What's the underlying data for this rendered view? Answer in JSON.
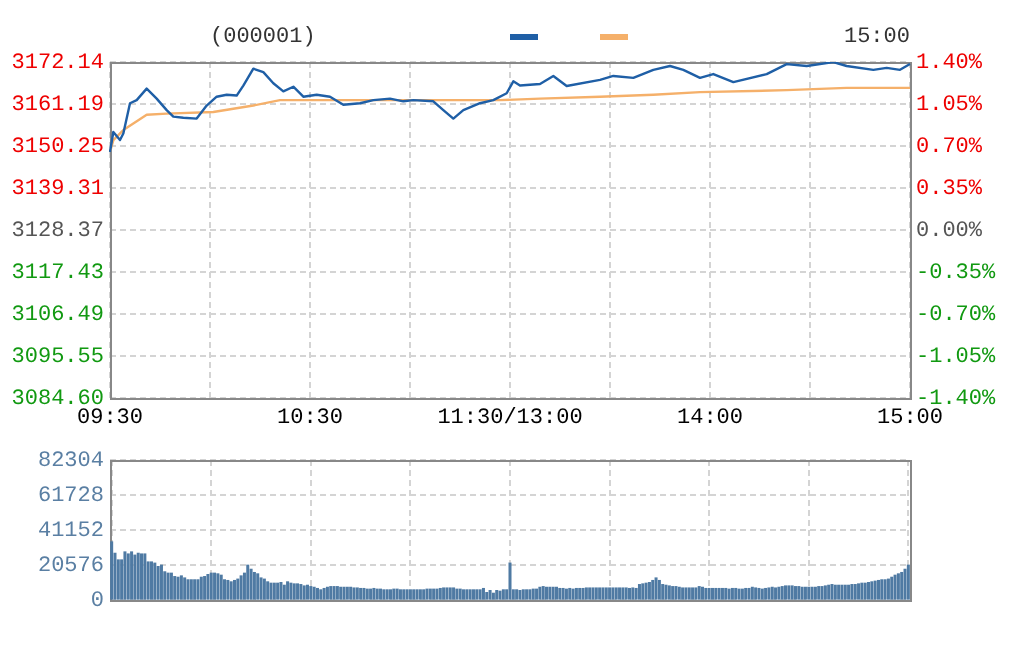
{
  "chart_data": [
    {
      "type": "line",
      "title": "(000001)",
      "annotations": [
        "15:00"
      ],
      "categories": [
        "09:30",
        null,
        null,
        null,
        null,
        null,
        null,
        null,
        null,
        null,
        null,
        null,
        null,
        null,
        null,
        null,
        null,
        null,
        null,
        null,
        null,
        null,
        null,
        null,
        null,
        null,
        null,
        null,
        null,
        null,
        null,
        null,
        null,
        null,
        null,
        null,
        null,
        null,
        null,
        null,
        null,
        null,
        null,
        null,
        null,
        null,
        null,
        null,
        null,
        null,
        null,
        null,
        null,
        null,
        null,
        null,
        null,
        null,
        null,
        null,
        "10:30",
        null,
        null,
        null,
        null,
        null,
        null,
        null,
        null,
        null,
        null,
        null,
        null,
        null,
        null,
        null,
        null,
        null,
        null,
        null,
        null,
        null,
        null,
        null,
        null,
        null,
        null,
        null,
        null,
        null,
        null,
        null,
        null,
        null,
        null,
        null,
        null,
        null,
        null,
        null,
        null,
        null,
        null,
        null,
        null,
        null,
        null,
        null,
        null,
        null,
        null,
        null,
        null,
        null,
        null,
        null,
        null,
        null,
        null,
        null,
        "11:30/13:00",
        null,
        null,
        null,
        null,
        null,
        null,
        null,
        null,
        null,
        null,
        null,
        null,
        null,
        null,
        null,
        null,
        null,
        null,
        null,
        null,
        null,
        null,
        null,
        null,
        null,
        null,
        null,
        null,
        null,
        null,
        null,
        null,
        null,
        null,
        null,
        null,
        null,
        null,
        null,
        null,
        null,
        null,
        null,
        null,
        null,
        null,
        null,
        null,
        null,
        null,
        null,
        null,
        null,
        null,
        null,
        null,
        null,
        null,
        null,
        "14:00",
        null,
        null,
        null,
        null,
        null,
        null,
        null,
        null,
        null,
        null,
        null,
        null,
        null,
        null,
        null,
        null,
        null,
        null,
        null,
        null,
        null,
        null,
        null,
        null,
        null,
        null,
        null,
        null,
        null,
        null,
        null,
        null,
        null,
        null,
        null,
        null,
        null,
        null,
        null,
        null,
        null,
        null,
        null,
        null,
        null,
        null,
        null,
        null,
        null,
        null,
        null,
        null,
        null,
        null,
        null,
        null,
        null,
        null,
        null,
        "15:00"
      ],
      "ylim": [
        3084.6,
        3172.14
      ],
      "yticks": [
        {
          "value": 3084.6,
          "label": "3084.60"
        },
        3095.55,
        3106.49,
        3117.43,
        3128.37,
        3139.31,
        3150.25,
        3161.19,
        3172.14
      ],
      "y2lim": [
        -1.4,
        1.4
      ],
      "y2ticks": [
        {
          "value": -1.4,
          "label": "-1.40%"
        },
        {
          "value": -1.05,
          "label": "-1.05%"
        },
        {
          "value": -0.7,
          "label": "-0.70%"
        },
        {
          "value": -0.35,
          "label": "-0.35%"
        },
        {
          "value": 0,
          "label": "0.00%"
        },
        {
          "value": 0.35,
          "label": "0.35%"
        },
        {
          "value": 0.7,
          "label": "0.70%"
        },
        {
          "value": 1.05,
          "label": "1.05%"
        },
        {
          "value": 1.4,
          "label": "1.40%"
        }
      ],
      "grid": true,
      "series": [
        {
          "color": "#1f5fa6",
          "values": [
            3148.7,
            3153.9,
            null,
            3151.8,
            3153.5,
            null,
            3161.4,
            null,
            3162.2,
            null,
            null,
            3165.2,
            null,
            null,
            3162.6,
            null,
            null,
            3159.6,
            null,
            3157.9,
            null,
            null,
            3157.6,
            null,
            null,
            null,
            3157.4,
            null,
            null,
            3160.8,
            null,
            null,
            3163.1,
            null,
            null,
            3163.6,
            null,
            null,
            3163.4,
            null,
            3166.0,
            null,
            null,
            3170.4,
            null,
            null,
            3169.5,
            null,
            null,
            3166.6,
            null,
            null,
            3164.5,
            null,
            null,
            3165.7,
            null,
            null,
            3163.1,
            null,
            null,
            null,
            3163.6,
            null,
            null,
            null,
            3163.1,
            null,
            null,
            null,
            3161.0,
            null,
            null,
            null,
            null,
            3161.4,
            null,
            null,
            null,
            3162.2,
            null,
            null,
            null,
            null,
            3162.6,
            null,
            null,
            null,
            3161.9,
            null,
            null,
            3162.2,
            null,
            null,
            null,
            null,
            null,
            3161.9,
            null,
            null,
            3159.6,
            null,
            null,
            3157.4,
            null,
            null,
            3159.6,
            null,
            null,
            null,
            null,
            3161.4,
            null,
            null,
            null,
            3162.2,
            null,
            null,
            null,
            3164.0,
            null,
            3167.1,
            null,
            3166.0,
            null,
            null,
            null,
            null,
            null,
            3166.4,
            null,
            null,
            null,
            3168.5,
            null,
            null,
            null,
            3165.9,
            null,
            null,
            null,
            null,
            null,
            null,
            null,
            null,
            null,
            3167.5,
            null,
            null,
            null,
            3168.5,
            null,
            null,
            null,
            null,
            null,
            3168.0,
            null,
            null,
            null,
            null,
            null,
            3170.1,
            null,
            null,
            null,
            null,
            3171.1,
            null,
            null,
            null,
            3170.1,
            null,
            null,
            null,
            null,
            3168.0,
            null,
            null,
            null,
            3169.0,
            null,
            null,
            null,
            null,
            null,
            3166.9,
            null,
            null,
            null,
            null,
            null,
            null,
            null,
            null,
            null,
            3169.0,
            null,
            null,
            null,
            null,
            null,
            3171.6,
            null,
            null,
            null,
            null,
            null,
            3171.1,
            null,
            null,
            null,
            null,
            null,
            null,
            null,
            3172.1,
            null,
            null,
            null,
            3171.1,
            null,
            null,
            null,
            null,
            null,
            null,
            null,
            3170.1,
            null,
            null,
            null,
            3170.6,
            null,
            null,
            null,
            3170.1,
            null,
            null,
            3171.6
          ]
        },
        {
          "color": "#f5b06a",
          "values": [
            3148.7,
            3151.8,
            null,
            null,
            3154.4,
            null,
            null,
            3156.1,
            null,
            null,
            null,
            3158.4,
            null,
            null,
            null,
            null,
            null,
            3158.7,
            null,
            null,
            null,
            null,
            null,
            null,
            null,
            null,
            null,
            null,
            null,
            null,
            null,
            3159.1,
            null,
            null,
            null,
            null,
            null,
            null,
            null,
            null,
            null,
            null,
            null,
            3160.8,
            null,
            null,
            null,
            null,
            null,
            null,
            null,
            3162.2,
            null,
            null,
            null,
            null,
            null,
            null,
            null,
            null,
            null,
            null,
            null,
            null,
            null,
            null,
            null,
            3162.2,
            null,
            null,
            null,
            null,
            null,
            null,
            null,
            null,
            null,
            null,
            null,
            null,
            null,
            null,
            null,
            null,
            null,
            null,
            null,
            null,
            null,
            null,
            null,
            null,
            null,
            null,
            null,
            null,
            null,
            null,
            null,
            null,
            null,
            null,
            null,
            null,
            null,
            null,
            null,
            null,
            null,
            null,
            null,
            null,
            null,
            null,
            null,
            null,
            null,
            3162.2,
            null,
            null,
            null,
            null,
            null,
            null,
            null,
            null,
            null,
            null,
            null,
            3162.6,
            null,
            null,
            null,
            null,
            null,
            null,
            null,
            null,
            null,
            null,
            null,
            null,
            null,
            null,
            null,
            null,
            null,
            3163.1,
            null,
            null,
            null,
            null,
            null,
            null,
            null,
            null,
            null,
            null,
            null,
            null,
            null,
            null,
            null,
            3163.6,
            null,
            null,
            null,
            null,
            null,
            null,
            null,
            null,
            null,
            null,
            null,
            null,
            null,
            3164.3,
            null,
            null,
            null,
            null,
            null,
            null,
            null,
            null,
            null,
            null,
            null,
            null,
            null,
            null,
            null,
            null,
            null,
            null,
            null,
            null,
            null,
            null,
            null,
            null,
            null,
            3164.8,
            null,
            null,
            null,
            null,
            null,
            null,
            null,
            null,
            null,
            null,
            null,
            null,
            null,
            null,
            null,
            null,
            null,
            3165.4,
            null,
            null,
            null,
            null,
            null,
            null,
            null,
            null,
            null,
            null,
            null,
            null,
            null,
            null,
            null,
            null,
            null,
            null,
            3165.4
          ]
        }
      ]
    },
    {
      "type": "bar",
      "color": "#4f7aa3",
      "tick_labels": "y",
      "grid": true,
      "categories": [
        null,
        null,
        null,
        null,
        null,
        null,
        null,
        null,
        null,
        null,
        null,
        null,
        null,
        null,
        null,
        null,
        null,
        null,
        null,
        null,
        null,
        null,
        null,
        null,
        null,
        null,
        null,
        null,
        null,
        null,
        null,
        null,
        null,
        null,
        null,
        null,
        null,
        null,
        null,
        null,
        null,
        null,
        null,
        null,
        null,
        null,
        null,
        null,
        null,
        null,
        null,
        null,
        null,
        null,
        null,
        null,
        null,
        null,
        null,
        null,
        null,
        null,
        null,
        null,
        null,
        null,
        null,
        null,
        null,
        null,
        null,
        null,
        null,
        null,
        null,
        null,
        null,
        null,
        null,
        null,
        null,
        null,
        null,
        null,
        null,
        null,
        null,
        null,
        null,
        null,
        null,
        null,
        null,
        null,
        null,
        null,
        null,
        null,
        null,
        null,
        null,
        null,
        null,
        null,
        null,
        null,
        null,
        null,
        null,
        null,
        null,
        null,
        null,
        null,
        null,
        null,
        null,
        null,
        null,
        null,
        null,
        null,
        null,
        null,
        null,
        null,
        null,
        null,
        null,
        null,
        null,
        null,
        null,
        null,
        null,
        null,
        null,
        null,
        null,
        null,
        null,
        null,
        null,
        null,
        null,
        null,
        null,
        null,
        null,
        null,
        null,
        null,
        null,
        null,
        null,
        null,
        null,
        null,
        null,
        null,
        null,
        null,
        null,
        null,
        null,
        null,
        null,
        null,
        null,
        null,
        null,
        null,
        null,
        null,
        null,
        null,
        null,
        null,
        null,
        null,
        null,
        null,
        null,
        null,
        null,
        null,
        null,
        null,
        null,
        null,
        null,
        null,
        null,
        null,
        null,
        null,
        null,
        null,
        null,
        null,
        null,
        null,
        null,
        null,
        null,
        null,
        null,
        null,
        null,
        null,
        null,
        null,
        null,
        null,
        null,
        null,
        null,
        null,
        null,
        null,
        null,
        null,
        null,
        null,
        null,
        null,
        null,
        null,
        null,
        null,
        null,
        null,
        null,
        null,
        null,
        null,
        null,
        null,
        null,
        null,
        null
      ],
      "ylim": [
        0,
        82304
      ],
      "yticks": [
        0,
        20576,
        41152,
        61728,
        82304
      ],
      "values": [
        34100,
        27400,
        23500,
        23500,
        28200,
        27000,
        28200,
        26300,
        27400,
        27000,
        27000,
        22300,
        22300,
        21600,
        19600,
        20400,
        16500,
        15700,
        15700,
        13700,
        13300,
        14100,
        12900,
        11800,
        11800,
        11800,
        11800,
        13300,
        13700,
        14900,
        15700,
        15700,
        15300,
        14500,
        11800,
        11400,
        10600,
        11400,
        12200,
        14100,
        15700,
        20400,
        18000,
        16100,
        15300,
        12900,
        12200,
        10600,
        9800,
        9800,
        9800,
        10200,
        8600,
        10600,
        9800,
        9400,
        9400,
        9000,
        8200,
        8600,
        7800,
        7400,
        6700,
        5900,
        6700,
        7400,
        7800,
        7800,
        7800,
        7400,
        7400,
        7400,
        7400,
        7000,
        7000,
        6700,
        6700,
        6300,
        6300,
        6700,
        6300,
        6300,
        5900,
        5900,
        5900,
        6300,
        6300,
        5900,
        5900,
        5900,
        5900,
        5900,
        5900,
        5900,
        5900,
        6300,
        6300,
        6300,
        6300,
        6700,
        7000,
        7000,
        7000,
        7000,
        6300,
        6300,
        5900,
        5900,
        5900,
        5900,
        5900,
        5900,
        6700,
        4300,
        5500,
        3900,
        5500,
        5100,
        5900,
        5900,
        21600,
        5900,
        5900,
        5500,
        5900,
        5900,
        5900,
        6300,
        6300,
        7400,
        7800,
        7400,
        7400,
        7400,
        7400,
        6700,
        6700,
        6300,
        6700,
        6300,
        6700,
        6700,
        6700,
        7000,
        7000,
        7000,
        7000,
        7000,
        7000,
        7000,
        7000,
        7000,
        7000,
        7000,
        7000,
        7000,
        6700,
        7000,
        6700,
        9000,
        9400,
        9800,
        10200,
        11400,
        12900,
        11400,
        9000,
        8600,
        8200,
        7800,
        7800,
        7400,
        7000,
        7000,
        7000,
        7000,
        7000,
        7800,
        7400,
        6700,
        6700,
        6700,
        6700,
        6700,
        6700,
        6700,
        6300,
        6700,
        6700,
        6300,
        6300,
        6700,
        6700,
        7400,
        7000,
        6700,
        6300,
        6700,
        7000,
        7400,
        7000,
        7400,
        7800,
        8200,
        8200,
        8200,
        7800,
        7800,
        7400,
        7400,
        7400,
        7400,
        7400,
        7800,
        7800,
        8200,
        8600,
        9000,
        8600,
        8600,
        8600,
        8600,
        8600,
        9000,
        9000,
        9400,
        9800,
        9800,
        10200,
        10600,
        11000,
        11400,
        11800,
        11800,
        12200,
        13300,
        14500,
        15300,
        16100,
        18000,
        20400
      ]
    }
  ]
}
